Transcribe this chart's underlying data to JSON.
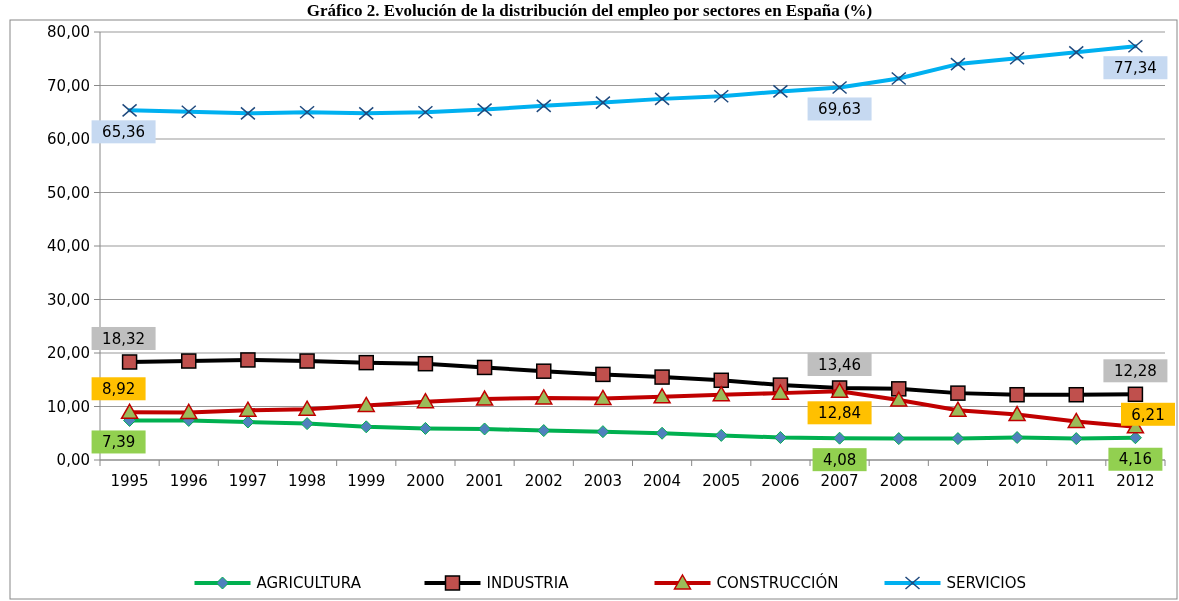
{
  "chart_data": {
    "type": "line",
    "title": "Gráfico 2. Evolución de la distribución del empleo por sectores en España (%)",
    "categories": [
      "1995",
      "1996",
      "1997",
      "1998",
      "1999",
      "2000",
      "2001",
      "2002",
      "2003",
      "2004",
      "2005",
      "2006",
      "2007",
      "2008",
      "2009",
      "2010",
      "2011",
      "2012"
    ],
    "series": [
      {
        "name": "AGRICULTURA",
        "color": "#00b050",
        "marker": "diamond",
        "values": [
          7.39,
          7.4,
          7.1,
          6.8,
          6.2,
          5.9,
          5.8,
          5.5,
          5.3,
          5.0,
          4.6,
          4.2,
          4.08,
          4.0,
          4.0,
          4.2,
          4.0,
          4.16
        ],
        "value_labels": [
          "7,39",
          null,
          null,
          null,
          null,
          null,
          null,
          null,
          null,
          null,
          null,
          null,
          "4,08",
          null,
          null,
          null,
          null,
          "4,16"
        ]
      },
      {
        "name": "INDUSTRIA",
        "color": "#000000",
        "marker": "square",
        "values": [
          18.32,
          18.5,
          18.7,
          18.5,
          18.2,
          18.0,
          17.3,
          16.6,
          16.0,
          15.5,
          14.9,
          14.0,
          13.46,
          13.3,
          12.5,
          12.2,
          12.2,
          12.28
        ],
        "value_labels": [
          "18,32",
          null,
          null,
          null,
          null,
          null,
          null,
          null,
          null,
          null,
          null,
          null,
          "13,46",
          null,
          null,
          null,
          null,
          "12,28"
        ]
      },
      {
        "name": "CONSTRUCCIÓN",
        "color": "#c00000",
        "marker": "triangle",
        "values": [
          8.92,
          8.9,
          9.3,
          9.5,
          10.2,
          10.9,
          11.4,
          11.6,
          11.5,
          11.8,
          12.2,
          12.5,
          12.84,
          11.2,
          9.3,
          8.5,
          7.2,
          6.21
        ],
        "value_labels": [
          "8,92",
          null,
          null,
          null,
          null,
          null,
          null,
          null,
          null,
          null,
          null,
          null,
          "12,84",
          null,
          null,
          null,
          null,
          "6,21"
        ]
      },
      {
        "name": "SERVICIOS",
        "color": "#00b0f0",
        "marker": "cross",
        "values": [
          65.36,
          65.1,
          64.8,
          65.0,
          64.8,
          65.0,
          65.5,
          66.2,
          66.8,
          67.5,
          68.0,
          68.9,
          69.63,
          71.3,
          74.0,
          75.1,
          76.2,
          77.34
        ],
        "value_labels": [
          "65,36",
          null,
          null,
          null,
          null,
          null,
          null,
          null,
          null,
          null,
          null,
          null,
          "69,63",
          null,
          null,
          null,
          null,
          "77,34"
        ]
      }
    ],
    "ylim": [
      0,
      80
    ],
    "yticks": [
      {
        "value": 0,
        "label": "0,00"
      },
      {
        "value": 10,
        "label": "10,00"
      },
      {
        "value": 20,
        "label": "20,00"
      },
      {
        "value": 30,
        "label": "30,00"
      },
      {
        "value": 40,
        "label": "40,00"
      },
      {
        "value": 50,
        "label": "50,00"
      },
      {
        "value": 60,
        "label": "60,00"
      },
      {
        "value": 70,
        "label": "70,00"
      },
      {
        "value": 80,
        "label": "80,00"
      }
    ],
    "grid": "y",
    "legend": "bottom",
    "line_style": "solid"
  }
}
